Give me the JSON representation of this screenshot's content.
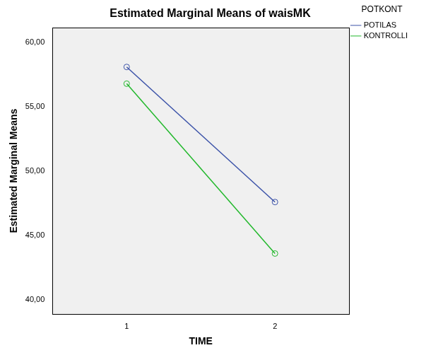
{
  "chart_data": {
    "type": "line",
    "title": "Estimated Marginal Means of waisMK",
    "x_label": "TIME",
    "y_label": "Estimated Marginal Means",
    "legend_title": "POTKONT",
    "categories": [
      "1",
      "2"
    ],
    "series": [
      {
        "name": "POTILAS",
        "color": "#3b52a8",
        "values": [
          58.1,
          47.6
        ]
      },
      {
        "name": "KONTROLLI",
        "color": "#22b82c",
        "values": [
          56.8,
          43.6
        ]
      }
    ],
    "ylim": [
      38.9,
      61.15
    ],
    "yticks": [
      {
        "value": 40,
        "label": "40,00"
      },
      {
        "value": 45,
        "label": "45,00"
      },
      {
        "value": 50,
        "label": "50,00"
      },
      {
        "value": 55,
        "label": "55,00"
      },
      {
        "value": 60,
        "label": "60,00"
      }
    ],
    "grid": false,
    "legend": "right",
    "marker": "circle"
  }
}
